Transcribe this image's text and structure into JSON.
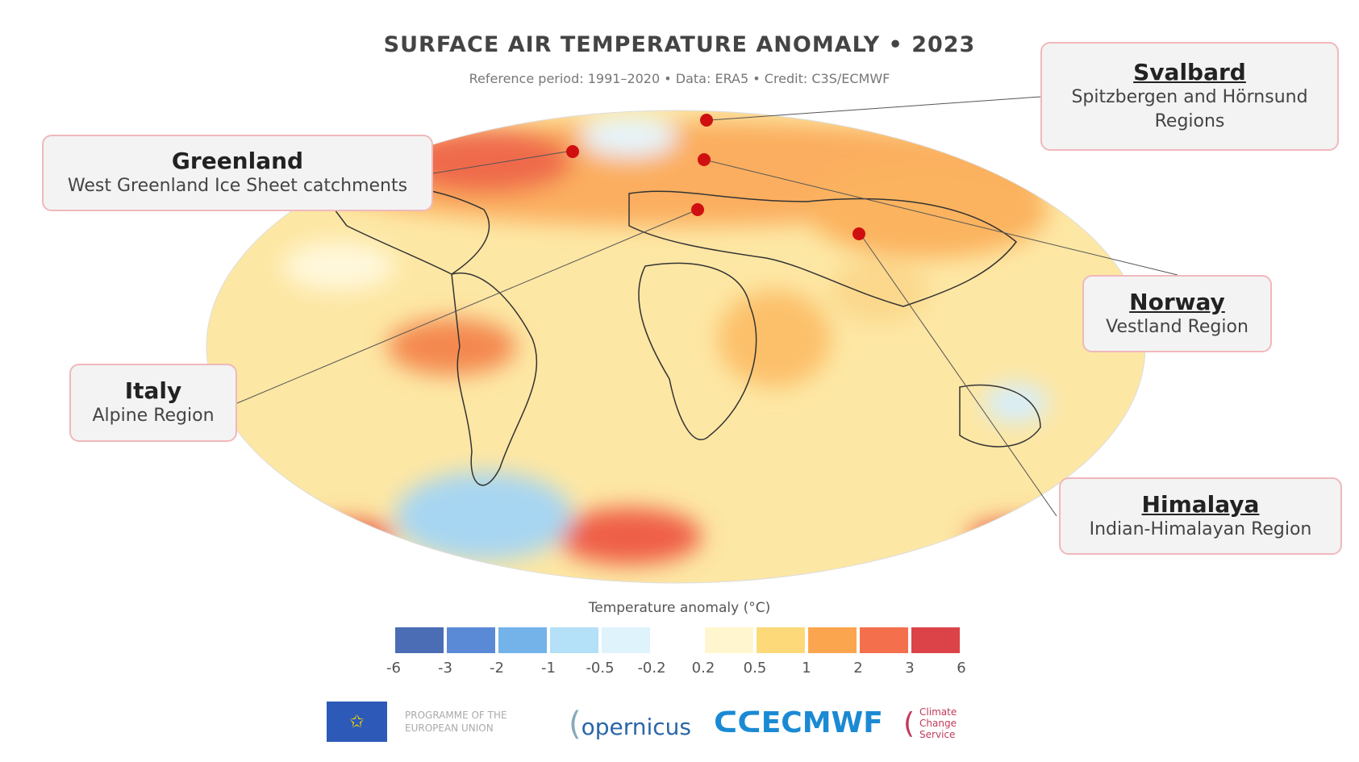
{
  "chart_data": {
    "type": "heatmap",
    "title": "SURFACE AIR TEMPERATURE ANOMALY • 2023",
    "subtitle": "Reference period: 1991–2020 • Data: ERA5 • Credit: C3S/ECMWF",
    "colorbar": {
      "label": "Temperature anomaly (°C)",
      "ticks": [
        "-6",
        "-3",
        "-2",
        "-1",
        "-0.5",
        "-0.2",
        "0.2",
        "0.5",
        "1",
        "2",
        "3",
        "6"
      ],
      "colors": [
        "#4a6db5",
        "#5a8ad6",
        "#74b3ea",
        "#b4e0f8",
        "#dff3fc",
        "#ffffff",
        "#fff6cf",
        "#fdd97a",
        "#fba64e",
        "#f4704c",
        "#dc4348"
      ]
    },
    "callouts": [
      {
        "title": "Greenland",
        "subtitle": "West Greenland Ice Sheet catchments"
      },
      {
        "title": "Svalbard",
        "subtitle": "Spitzbergen and Hörnsund Regions"
      },
      {
        "title": "Norway",
        "subtitle": "Vestland Region"
      },
      {
        "title": "Italy",
        "subtitle": "Alpine Region"
      },
      {
        "title": "Himalaya",
        "subtitle": "Indian-Himalayan Region"
      }
    ],
    "marker_color": "#d01010"
  },
  "logos": {
    "eu": "PROGRAMME OF THE EUROPEAN UNION",
    "copernicus": "opernicus",
    "ecmwf": "ECMWF",
    "c3s": "Climate Change Service"
  }
}
